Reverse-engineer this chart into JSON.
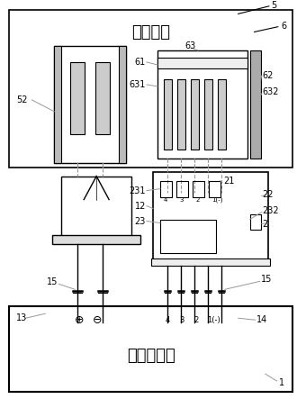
{
  "title_charging_device": "充电装置",
  "title_battery": "可充电电池",
  "label_5": "5",
  "label_6": "6",
  "label_52": "52",
  "label_63": "63",
  "label_61": "61",
  "label_62": "62",
  "label_631": "631",
  "label_632": "632",
  "label_21": "21",
  "label_231": "231",
  "label_12": "12",
  "label_22": "22",
  "label_232": "232",
  "label_2": "2",
  "label_23": "23",
  "label_15a": "15",
  "label_15b": "15",
  "label_13": "13",
  "label_14": "14",
  "label_1": "1",
  "bg_color": "#ffffff",
  "lc": "#000000",
  "llc": "#999999",
  "fig_width": 3.4,
  "fig_height": 4.43,
  "dpi": 100
}
